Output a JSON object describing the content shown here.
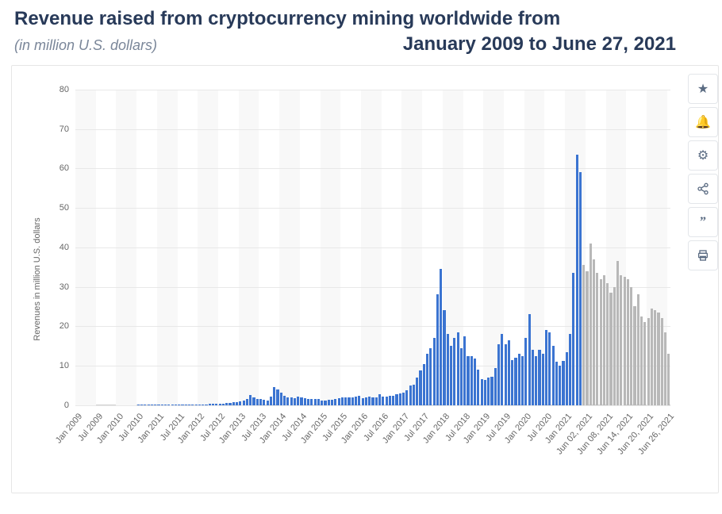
{
  "header": {
    "title_line1": "Revenue raised from cryptocurrency mining worldwide from",
    "title_line2": "January 2009 to June 27, 2021",
    "subtitle": "(in million U.S. dollars)"
  },
  "toolbar": {
    "icons": [
      "star",
      "bell",
      "gear",
      "share",
      "quote",
      "print"
    ]
  },
  "chart": {
    "type": "bar",
    "y_axis_label": "Revenues in million U.S. dollars",
    "ylim": [
      0,
      80
    ],
    "ytick_step": 10,
    "yticks": [
      0,
      10,
      20,
      30,
      40,
      50,
      60,
      70,
      80
    ],
    "background_color": "#ffffff",
    "stripe_color": "#f8f8f8",
    "grid_color": "#e8e8e8",
    "series": [
      {
        "color": "#3b74d1",
        "values": [
          0,
          0,
          0,
          0,
          0,
          0,
          0,
          0,
          0,
          0,
          0,
          0,
          0,
          0,
          0,
          0,
          0,
          0,
          0.1,
          0.1,
          0.1,
          0.1,
          0.1,
          0.1,
          0.1,
          0.1,
          0.1,
          0.1,
          0.1,
          0.1,
          0.1,
          0.1,
          0.1,
          0.2,
          0.2,
          0.2,
          0.2,
          0.2,
          0.2,
          0.3,
          0.3,
          0.3,
          0.3,
          0.4,
          0.5,
          0.6,
          0.7,
          0.8,
          1.0,
          1.2,
          1.6,
          2.5,
          2.0,
          1.5,
          1.5,
          1.3,
          1.2,
          2.2,
          4.5,
          4.0,
          3.2,
          2.4,
          2.0,
          1.9,
          1.8,
          2.1,
          2.0,
          1.7,
          1.6,
          1.5,
          1.5,
          1.5,
          1.1,
          1.2,
          1.3,
          1.3,
          1.5,
          1.7,
          1.9,
          2.0,
          2.0,
          2.0,
          2.1,
          2.3,
          1.8,
          1.9,
          2.2,
          2.0,
          1.9,
          2.8,
          2.1,
          2.2,
          2.3,
          2.4,
          2.7,
          3.0,
          3.2,
          3.8,
          5.0,
          5.2,
          7.0,
          8.8,
          10.5,
          13.0,
          14.5,
          17.0,
          28.0,
          34.5,
          24.0,
          18.0,
          15.0,
          17.0,
          18.5,
          14.5,
          17.5,
          12.5,
          12.5,
          11.8,
          9.0,
          6.5,
          6.3,
          7.0,
          7.2,
          9.5,
          15.5,
          18.0,
          15.5,
          16.5,
          11.5,
          12.0,
          13.0,
          12.5,
          17.0,
          23.0,
          14.0,
          12.5,
          14.0,
          13.0,
          19.0,
          18.5,
          15.0,
          11.0,
          10.0,
          11.2,
          13.5,
          18.0,
          33.5,
          63.5,
          59.0
        ]
      },
      {
        "color": "#b8b8b8",
        "values": [
          35.5,
          34.0,
          41.0,
          37.0,
          33.5,
          32.0,
          33.0,
          31.0,
          28.5,
          30.0,
          36.5,
          33.0,
          32.5,
          32.0,
          30.0,
          25.0,
          28.0,
          22.5,
          21.0,
          22.0,
          24.5,
          24.0,
          23.5,
          22.0,
          18.5,
          13.0
        ]
      }
    ],
    "x_labels": [
      {
        "idx": 0,
        "text": "Jan 2009"
      },
      {
        "idx": 6,
        "text": "Jul 2009"
      },
      {
        "idx": 12,
        "text": "Jan 2010"
      },
      {
        "idx": 18,
        "text": "Jul 2010"
      },
      {
        "idx": 24,
        "text": "Jan 2011"
      },
      {
        "idx": 30,
        "text": "Jul 2011"
      },
      {
        "idx": 36,
        "text": "Jan 2012"
      },
      {
        "idx": 42,
        "text": "Jul 2012"
      },
      {
        "idx": 48,
        "text": "Jan 2013"
      },
      {
        "idx": 54,
        "text": "Jul 2013"
      },
      {
        "idx": 60,
        "text": "Jan 2014"
      },
      {
        "idx": 66,
        "text": "Jul 2014"
      },
      {
        "idx": 72,
        "text": "Jan 2015"
      },
      {
        "idx": 78,
        "text": "Jul 2015"
      },
      {
        "idx": 84,
        "text": "Jan 2016"
      },
      {
        "idx": 90,
        "text": "Jul 2016"
      },
      {
        "idx": 96,
        "text": "Jan 2017"
      },
      {
        "idx": 102,
        "text": "Jul 2017"
      },
      {
        "idx": 108,
        "text": "Jan 2018"
      },
      {
        "idx": 114,
        "text": "Jul 2018"
      },
      {
        "idx": 120,
        "text": "Jan 2019"
      },
      {
        "idx": 126,
        "text": "Jul 2019"
      },
      {
        "idx": 132,
        "text": "Jan 2020"
      },
      {
        "idx": 138,
        "text": "Jul 2020"
      },
      {
        "idx": 144,
        "text": "Jan 2021"
      },
      {
        "idx": 150,
        "text": "Jun 02, 2021"
      },
      {
        "idx": 156,
        "text": "Jun 08, 2021"
      },
      {
        "idx": 162,
        "text": "Jun 14, 2021"
      },
      {
        "idx": 168,
        "text": "Jun 20, 2021"
      },
      {
        "idx": 174,
        "text": "Jun 26, 2021"
      }
    ],
    "bar_gap_ratio": 0.25
  }
}
